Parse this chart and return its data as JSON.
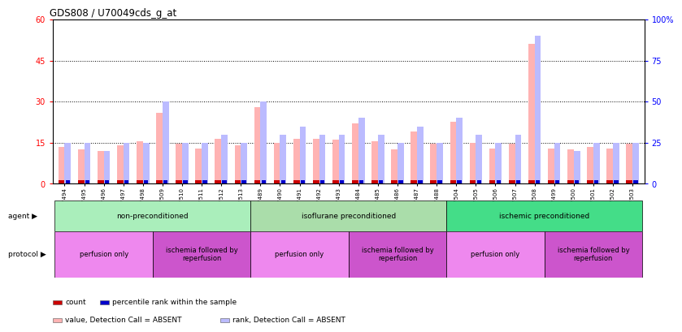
{
  "title": "GDS808 / U70049cds_g_at",
  "samples": [
    "GSM27494",
    "GSM27495",
    "GSM27496",
    "GSM27497",
    "GSM27498",
    "GSM27509",
    "GSM27510",
    "GSM27511",
    "GSM27512",
    "GSM27513",
    "GSM27489",
    "GSM27490",
    "GSM27491",
    "GSM27492",
    "GSM27493",
    "GSM27484",
    "GSM27485",
    "GSM27486",
    "GSM27487",
    "GSM27488",
    "GSM27504",
    "GSM27505",
    "GSM27506",
    "GSM27507",
    "GSM27508",
    "GSM27499",
    "GSM27500",
    "GSM27501",
    "GSM27502",
    "GSM27503"
  ],
  "absent_count": [
    13.5,
    12.5,
    12.0,
    14.0,
    15.5,
    26.0,
    14.5,
    13.0,
    16.5,
    14.0,
    28.0,
    15.0,
    16.5,
    16.5,
    16.0,
    22.0,
    15.5,
    12.5,
    19.0,
    14.5,
    22.5,
    15.0,
    13.0,
    14.5,
    51.0,
    13.0,
    12.5,
    13.5,
    13.0,
    14.5
  ],
  "absent_rank": [
    25,
    25,
    20,
    25,
    25,
    50,
    25,
    25,
    30,
    25,
    50,
    30,
    35,
    30,
    30,
    40,
    30,
    25,
    35,
    25,
    40,
    30,
    25,
    30,
    90,
    25,
    20,
    25,
    25,
    25
  ],
  "ylim_left": [
    0,
    60
  ],
  "ylim_right": [
    0,
    100
  ],
  "yticks_left": [
    0,
    15,
    30,
    45,
    60
  ],
  "yticks_right": [
    0,
    25,
    50,
    75,
    100
  ],
  "ytick_labels_left": [
    "0",
    "15",
    "30",
    "45",
    "60"
  ],
  "ytick_labels_right": [
    "0",
    "25",
    "50",
    "75",
    "100%"
  ],
  "hlines": [
    15,
    30,
    45
  ],
  "bw": 0.32,
  "count_color": "#CC0000",
  "rank_color": "#0000CC",
  "absent_count_color": "#FFB3B3",
  "absent_rank_color": "#BBBBFF",
  "agent_groups": [
    {
      "label": "non-preconditioned",
      "start": 0,
      "end": 9,
      "color": "#AAEEBB"
    },
    {
      "label": "isoflurane preconditioned",
      "start": 10,
      "end": 19,
      "color": "#AADDAA"
    },
    {
      "label": "ischemic preconditioned",
      "start": 20,
      "end": 29,
      "color": "#44DD88"
    }
  ],
  "protocol_groups": [
    {
      "label": "perfusion only",
      "start": 0,
      "end": 4,
      "color": "#EE88EE"
    },
    {
      "label": "ischemia followed by\nreperfusion",
      "start": 5,
      "end": 9,
      "color": "#CC55CC"
    },
    {
      "label": "perfusion only",
      "start": 10,
      "end": 14,
      "color": "#EE88EE"
    },
    {
      "label": "ischemia followed by\nreperfusion",
      "start": 15,
      "end": 19,
      "color": "#CC55CC"
    },
    {
      "label": "perfusion only",
      "start": 20,
      "end": 24,
      "color": "#EE88EE"
    },
    {
      "label": "ischemia followed by\nreperfusion",
      "start": 25,
      "end": 29,
      "color": "#CC55CC"
    }
  ],
  "legend_items": [
    {
      "label": "count",
      "color": "#CC0000"
    },
    {
      "label": "percentile rank within the sample",
      "color": "#0000CC"
    },
    {
      "label": "value, Detection Call = ABSENT",
      "color": "#FFB3B3"
    },
    {
      "label": "rank, Detection Call = ABSENT",
      "color": "#BBBBFF"
    }
  ]
}
